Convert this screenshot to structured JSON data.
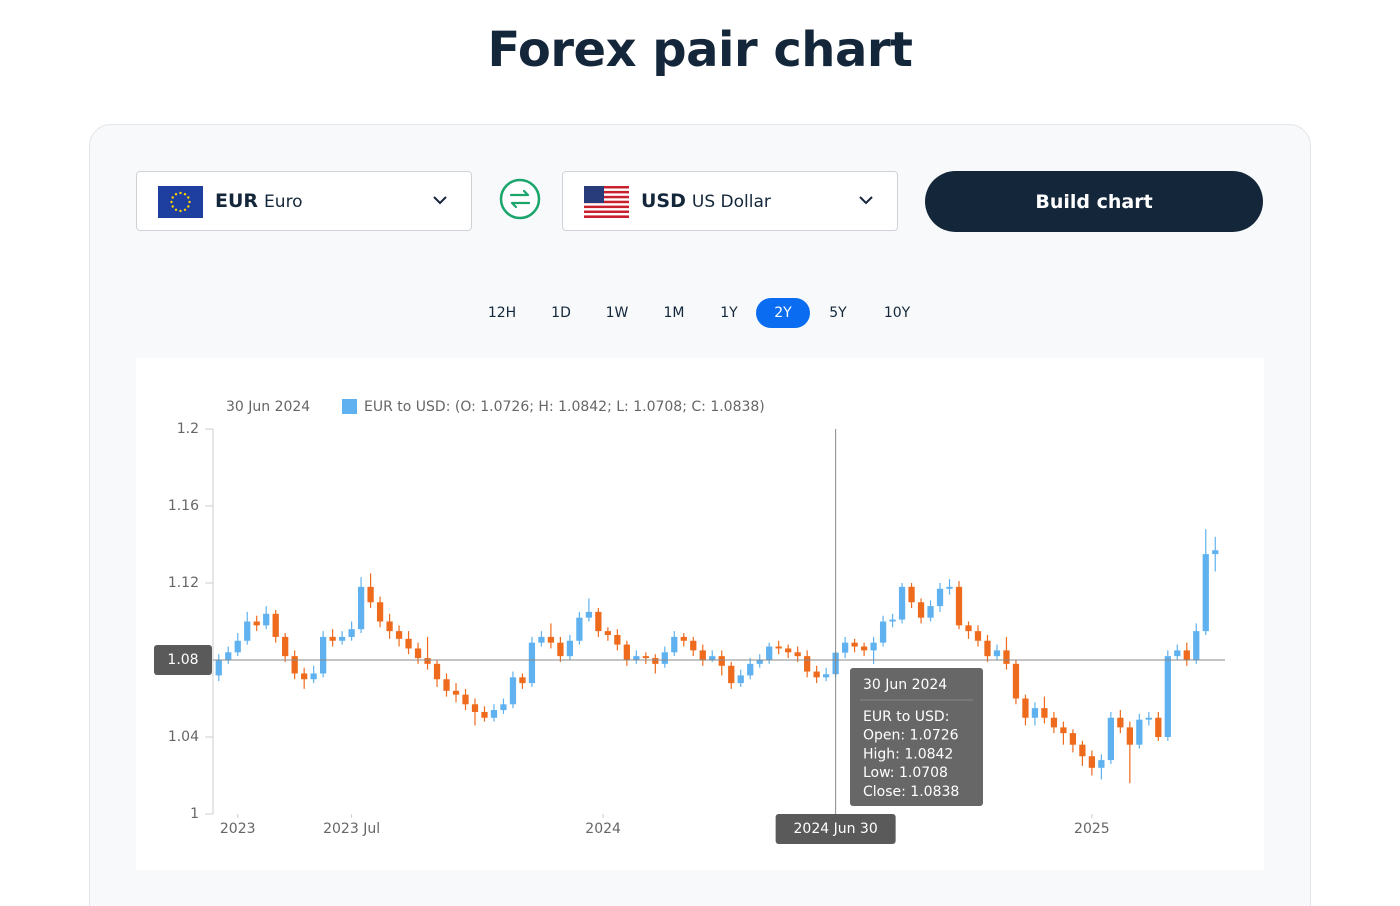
{
  "title": "Forex pair chart",
  "from": {
    "code": "EUR",
    "name": "Euro"
  },
  "to": {
    "code": "USD",
    "name": "US Dollar"
  },
  "button": "Build chart",
  "periods": [
    "12H",
    "1D",
    "1W",
    "1M",
    "1Y",
    "2Y",
    "5Y",
    "10Y"
  ],
  "active_period": "2Y",
  "chart_data": {
    "type": "candlestick",
    "legend_date": "30 Jun 2024",
    "series_name": "EUR to USD: (O: 1.0726; H: 1.0842; L: 1.0708; C: 1.0838)",
    "up_color": "#5fb2ef",
    "down_color": "#ee6a1c",
    "xlim": [
      -0.5,
      105.5
    ],
    "xticks": [
      {
        "value": 2,
        "label": "2023"
      },
      {
        "value": 14,
        "label": "2023 Jul"
      },
      {
        "value": 40.5,
        "label": "2024"
      },
      {
        "value": 92,
        "label": "2025"
      }
    ],
    "ylim": [
      1,
      1.2
    ],
    "yticks": [
      1,
      1.04,
      1.08,
      1.12,
      1.16,
      1.2
    ],
    "grid": false,
    "open": [
      1.072,
      1.08,
      1.084,
      1.09,
      1.1,
      1.098,
      1.104,
      1.092,
      1.082,
      1.073,
      1.07,
      1.073,
      1.092,
      1.09,
      1.092,
      1.096,
      1.118,
      1.11,
      1.1,
      1.095,
      1.091,
      1.086,
      1.081,
      1.078,
      1.07,
      1.064,
      1.062,
      1.057,
      1.053,
      1.05,
      1.054,
      1.057,
      1.071,
      1.068,
      1.089,
      1.092,
      1.089,
      1.082,
      1.09,
      1.102,
      1.105,
      1.095,
      1.093,
      1.088,
      1.08,
      1.082,
      1.081,
      1.078,
      1.084,
      1.092,
      1.09,
      1.085,
      1.08,
      1.082,
      1.077,
      1.068,
      1.072,
      1.078,
      1.08,
      1.087,
      1.086,
      1.084,
      1.082,
      1.074,
      1.071,
      1.0726,
      1.0838,
      1.089,
      1.087,
      1.085,
      1.089,
      1.1,
      1.101,
      1.118,
      1.11,
      1.102,
      1.108,
      1.117,
      1.118,
      1.098,
      1.095,
      1.09,
      1.082,
      1.085,
      1.078,
      1.06,
      1.05,
      1.055,
      1.05,
      1.045,
      1.042,
      1.036,
      1.03,
      1.024,
      1.028,
      1.05,
      1.045,
      1.036,
      1.049,
      1.05,
      1.04,
      1.082,
      1.085,
      1.08,
      1.095,
      1.135
    ],
    "high": [
      1.083,
      1.087,
      1.094,
      1.105,
      1.103,
      1.108,
      1.106,
      1.094,
      1.085,
      1.076,
      1.077,
      1.095,
      1.096,
      1.095,
      1.1,
      1.123,
      1.125,
      1.113,
      1.104,
      1.098,
      1.095,
      1.089,
      1.092,
      1.08,
      1.073,
      1.068,
      1.065,
      1.06,
      1.056,
      1.057,
      1.06,
      1.074,
      1.073,
      1.092,
      1.095,
      1.099,
      1.092,
      1.093,
      1.105,
      1.112,
      1.107,
      1.097,
      1.096,
      1.09,
      1.085,
      1.084,
      1.083,
      1.087,
      1.095,
      1.094,
      1.092,
      1.088,
      1.085,
      1.085,
      1.079,
      1.075,
      1.081,
      1.083,
      1.089,
      1.09,
      1.088,
      1.087,
      1.085,
      1.077,
      1.076,
      1.0842,
      1.092,
      1.091,
      1.089,
      1.092,
      1.103,
      1.104,
      1.12,
      1.12,
      1.112,
      1.111,
      1.12,
      1.122,
      1.121,
      1.1,
      1.098,
      1.093,
      1.088,
      1.092,
      1.08,
      1.062,
      1.058,
      1.061,
      1.053,
      1.048,
      1.044,
      1.038,
      1.033,
      1.031,
      1.053,
      1.054,
      1.048,
      1.052,
      1.053,
      1.053,
      1.085,
      1.088,
      1.089,
      1.099,
      1.148,
      1.144
    ],
    "low": [
      1.069,
      1.078,
      1.082,
      1.088,
      1.095,
      1.096,
      1.089,
      1.079,
      1.07,
      1.065,
      1.068,
      1.071,
      1.087,
      1.088,
      1.09,
      1.094,
      1.107,
      1.097,
      1.091,
      1.087,
      1.083,
      1.078,
      1.075,
      1.066,
      1.061,
      1.058,
      1.054,
      1.046,
      1.048,
      1.048,
      1.052,
      1.055,
      1.065,
      1.066,
      1.087,
      1.086,
      1.079,
      1.08,
      1.088,
      1.1,
      1.092,
      1.09,
      1.085,
      1.077,
      1.078,
      1.078,
      1.073,
      1.076,
      1.082,
      1.087,
      1.082,
      1.077,
      1.079,
      1.072,
      1.065,
      1.066,
      1.07,
      1.076,
      1.078,
      1.083,
      1.081,
      1.079,
      1.071,
      1.068,
      1.069,
      1.0708,
      1.081,
      1.084,
      1.082,
      1.078,
      1.087,
      1.097,
      1.099,
      1.107,
      1.099,
      1.1,
      1.105,
      1.114,
      1.096,
      1.091,
      1.087,
      1.079,
      1.08,
      1.075,
      1.057,
      1.046,
      1.046,
      1.047,
      1.042,
      1.036,
      1.032,
      1.025,
      1.02,
      1.018,
      1.026,
      1.042,
      1.016,
      1.034,
      1.046,
      1.038,
      1.038,
      1.08,
      1.077,
      1.078,
      1.093,
      1.126
    ],
    "close": [
      1.08,
      1.084,
      1.09,
      1.1,
      1.098,
      1.104,
      1.092,
      1.082,
      1.073,
      1.07,
      1.073,
      1.092,
      1.09,
      1.092,
      1.096,
      1.118,
      1.11,
      1.1,
      1.095,
      1.091,
      1.086,
      1.081,
      1.078,
      1.07,
      1.064,
      1.062,
      1.057,
      1.053,
      1.05,
      1.054,
      1.057,
      1.071,
      1.068,
      1.089,
      1.092,
      1.089,
      1.082,
      1.09,
      1.102,
      1.105,
      1.095,
      1.093,
      1.088,
      1.08,
      1.082,
      1.081,
      1.078,
      1.084,
      1.092,
      1.09,
      1.085,
      1.08,
      1.082,
      1.077,
      1.068,
      1.072,
      1.078,
      1.08,
      1.087,
      1.086,
      1.084,
      1.082,
      1.074,
      1.071,
      1.0726,
      1.0838,
      1.089,
      1.087,
      1.085,
      1.089,
      1.1,
      1.101,
      1.118,
      1.11,
      1.102,
      1.108,
      1.117,
      1.118,
      1.098,
      1.095,
      1.09,
      1.082,
      1.085,
      1.078,
      1.06,
      1.05,
      1.055,
      1.05,
      1.045,
      1.042,
      1.036,
      1.03,
      1.024,
      1.028,
      1.05,
      1.045,
      1.036,
      1.049,
      1.05,
      1.04,
      1.082,
      1.085,
      1.08,
      1.095,
      1.135,
      1.137
    ],
    "crosshair": {
      "x": 65,
      "y": 1.08,
      "x_label": "2024 Jun 30"
    },
    "tooltip": {
      "title": "30 Jun 2024",
      "lines": [
        "EUR to USD:",
        "Open: 1.0726",
        "High: 1.0842",
        "Low: 1.0708",
        "Close: 1.0838"
      ]
    }
  }
}
